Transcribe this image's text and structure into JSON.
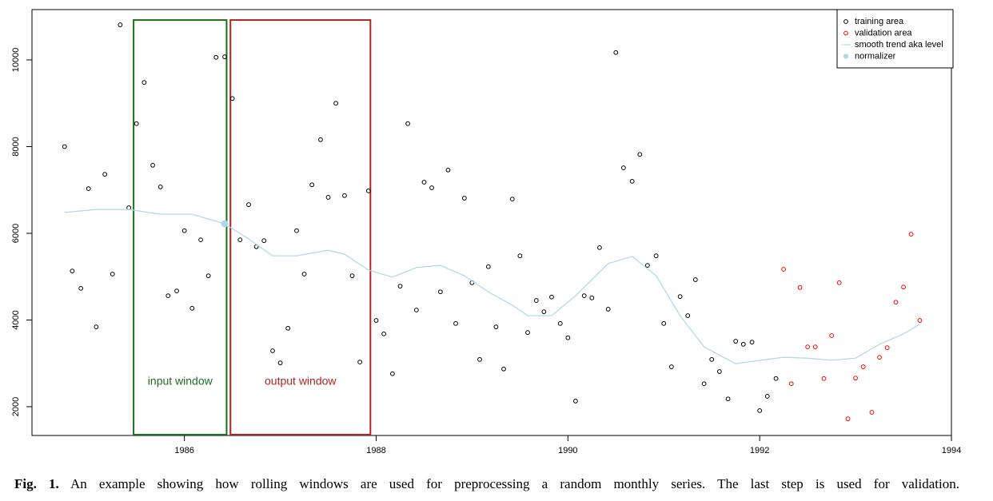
{
  "chart_data": {
    "type": "scatter",
    "xlim": [
      1984.41,
      1994.0
    ],
    "xticks": [
      1986,
      1988,
      1990,
      1992,
      1994
    ],
    "ylim": [
      1336,
      11161
    ],
    "yticks": [
      2000,
      4000,
      6000,
      8000,
      10000
    ],
    "legend": "top-right",
    "series": [
      {
        "name": "training area",
        "color": "#000000",
        "mark": "open-circle",
        "x": [
          1984.75,
          1984.83,
          1984.92,
          1985,
          1985.08,
          1985.17,
          1985.25,
          1985.33,
          1985.42,
          1985.5,
          1985.58,
          1985.67,
          1985.75,
          1985.83,
          1985.92,
          1986,
          1986.08,
          1986.17,
          1986.25,
          1986.33,
          1986.42,
          1986.5,
          1986.58,
          1986.67,
          1986.75,
          1986.83,
          1986.92,
          1987,
          1987.08,
          1987.17,
          1987.25,
          1987.33,
          1987.42,
          1987.5,
          1987.58,
          1987.67,
          1987.75,
          1987.83,
          1987.92,
          1988,
          1988.08,
          1988.17,
          1988.25,
          1988.33,
          1988.42,
          1988.5,
          1988.58,
          1988.67,
          1988.75,
          1988.83,
          1988.92,
          1989,
          1989.08,
          1989.17,
          1989.25,
          1989.33,
          1989.42,
          1989.5,
          1989.58,
          1989.67,
          1989.75,
          1989.83,
          1989.92,
          1990,
          1990.08,
          1990.17,
          1990.25,
          1990.33,
          1990.42,
          1990.5,
          1990.58,
          1990.67,
          1990.75,
          1990.83,
          1990.92,
          1991,
          1991.08,
          1991.17,
          1991.25,
          1991.33,
          1991.42,
          1991.5,
          1991.58,
          1991.67,
          1991.75,
          1991.83,
          1991.92,
          1992,
          1992.08,
          1992.17
        ],
        "values": [
          8000,
          5130,
          4730,
          7030,
          3840,
          7360,
          5060,
          10810,
          6590,
          8530,
          9480,
          7570,
          7070,
          4560,
          4670,
          6060,
          4270,
          5850,
          5020,
          10060,
          10070,
          9110,
          5850,
          6660,
          5690,
          5830,
          3290,
          3010,
          3810,
          6060,
          5060,
          7120,
          8160,
          6830,
          9000,
          6870,
          5020,
          3030,
          6980,
          3990,
          3680,
          2760,
          4780,
          8530,
          4230,
          7180,
          7050,
          4650,
          7460,
          3920,
          6810,
          4860,
          3090,
          5230,
          3840,
          2870,
          6790,
          5480,
          3710,
          4450,
          4190,
          4530,
          3920,
          3590,
          2130,
          4560,
          4510,
          5670,
          4250,
          10170,
          7510,
          7200,
          7820,
          5260,
          5480,
          3920,
          2920,
          4540,
          4100,
          4930,
          2530,
          3090,
          2810,
          2180,
          3510,
          3440,
          3490,
          1910,
          2240,
          2650
        ]
      },
      {
        "name": "validation area",
        "color": "#ff0000",
        "mark": "open-circle",
        "x": [
          1992.25,
          1992.33,
          1992.42,
          1992.5,
          1992.58,
          1992.67,
          1992.75,
          1992.83,
          1992.92,
          1993,
          1993.08,
          1993.17,
          1993.25,
          1993.33,
          1993.42,
          1993.5,
          1993.58,
          1993.67
        ],
        "values": [
          5170,
          2530,
          4750,
          3380,
          3380,
          2650,
          3640,
          4860,
          1720,
          2660,
          2920,
          1870,
          3140,
          3360,
          4410,
          4760,
          5980,
          3990
        ]
      },
      {
        "name": "smooth trend aka level",
        "color": "#add8e6",
        "mark": "line",
        "x": [
          1984.75,
          1985.08,
          1985.42,
          1985.75,
          1986.08,
          1986.42,
          1986.67,
          1986.92,
          1987.17,
          1987.5,
          1987.67,
          1987.92,
          1988.17,
          1988.42,
          1988.67,
          1988.92,
          1989.17,
          1989.42,
          1989.58,
          1989.83,
          1990.08,
          1990.42,
          1990.67,
          1990.92,
          1991.17,
          1991.42,
          1991.75,
          1992,
          1992.25,
          1992.5,
          1992.75,
          1993,
          1993.25,
          1993.5,
          1993.67
        ],
        "values": [
          6480,
          6550,
          6550,
          6440,
          6440,
          6220,
          5870,
          5480,
          5480,
          5610,
          5520,
          5150,
          4990,
          5210,
          5260,
          5020,
          4650,
          4340,
          4100,
          4100,
          4560,
          5300,
          5470,
          5020,
          4100,
          3380,
          2990,
          3070,
          3140,
          3120,
          3070,
          3120,
          3440,
          3680,
          3900
        ]
      },
      {
        "name": "normalizer",
        "color": "#add8e6",
        "mark": "filled-circle",
        "x": [
          1986.42
        ],
        "values": [
          6220
        ]
      }
    ],
    "windows": [
      {
        "label": "input window",
        "color": "#1e6e1e",
        "x": [
          1985.47,
          1986.44
        ],
        "y": [
          1355,
          10920
        ]
      },
      {
        "label": "output window",
        "color": "#b22222",
        "x": [
          1986.48,
          1987.94
        ],
        "y": [
          1355,
          10920
        ]
      }
    ]
  },
  "caption": {
    "label": "Fig. 1.",
    "text": "An example showing how rolling windows are used for preprocessing a random monthly series. The last step is used for validation."
  }
}
